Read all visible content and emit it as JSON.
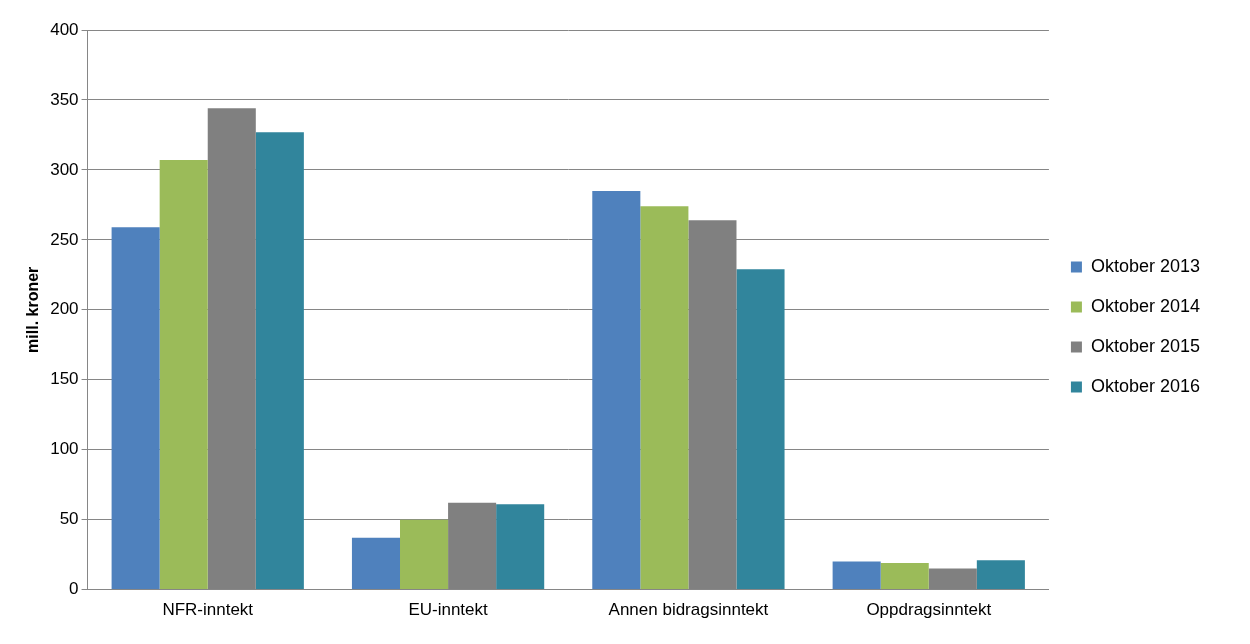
{
  "chart_data": {
    "type": "bar",
    "y_label": "mill. kroner",
    "categories": [
      "NFR-inntekt",
      "EU-inntekt",
      "Annen bidragsinntekt",
      "Oppdragsinntekt"
    ],
    "series": [
      {
        "name": "Oktober 2013",
        "color": "#4f81bd",
        "values": [
          259,
          37,
          285,
          20
        ]
      },
      {
        "name": "Oktober 2014",
        "color": "#9bbb59",
        "values": [
          307,
          50,
          274,
          19
        ]
      },
      {
        "name": "Oktober 2015",
        "color": "#808080",
        "values": [
          344,
          62,
          264,
          15
        ]
      },
      {
        "name": "Oktober 2016",
        "color": "#31859c",
        "values": [
          327,
          61,
          229,
          21
        ]
      }
    ],
    "ylim": [
      0,
      400
    ],
    "yticks": [
      0,
      50,
      100,
      150,
      200,
      250,
      300,
      350,
      400
    ],
    "grid": true,
    "legend": "right"
  }
}
